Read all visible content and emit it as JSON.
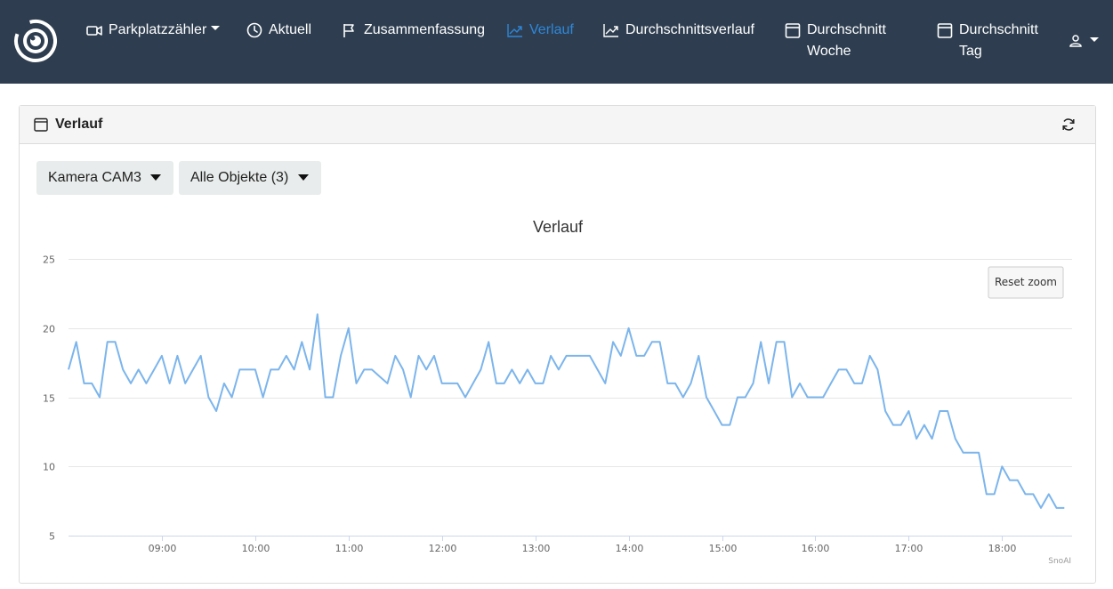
{
  "nav": {
    "brand_icon": "camera-eye-logo",
    "items": [
      {
        "label": "Parkplatzzähler",
        "icon": "video-camera-icon",
        "has_caret": true
      },
      {
        "label": "Aktuell",
        "icon": "clock-icon"
      },
      {
        "label": "Zusammenfassung",
        "icon": "flag-icon"
      },
      {
        "label": "Verlauf",
        "icon": "trending-up-icon",
        "active": true
      },
      {
        "label": "Durchschnittsverlauf",
        "icon": "trending-up-icon"
      },
      {
        "label": "Durchschnitt",
        "label2": "Woche",
        "icon": "calendar-icon"
      },
      {
        "label": "Durchschnitt",
        "label2": "Tag",
        "icon": "calendar-icon"
      }
    ],
    "user_icon": "user-icon"
  },
  "card": {
    "title": "Verlauf",
    "title_icon": "calendar-icon",
    "refresh_icon": "refresh-icon"
  },
  "filters": {
    "camera": "Kamera CAM3",
    "objects": "Alle Objekte (3)"
  },
  "chart_data": {
    "type": "line",
    "title": "Verlauf",
    "reset_zoom_label": "Reset zoom",
    "credit": "SnoAI",
    "xlabel": "",
    "ylabel": "",
    "x_tick_labels": [
      "09:00",
      "10:00",
      "11:00",
      "12:00",
      "13:00",
      "14:00",
      "15:00",
      "16:00",
      "17:00",
      "18:00"
    ],
    "y_tick_labels": [
      "5",
      "10",
      "15",
      "20",
      "25"
    ],
    "y_ticks": [
      5,
      10,
      15,
      20,
      25
    ],
    "ylim": [
      5,
      25
    ],
    "xlim_hours": [
      8.0,
      18.75
    ],
    "x_interval_minutes": 5,
    "x_start": "08:00",
    "series_color": "#7cb5ec",
    "grid": true,
    "legend": false,
    "series": [
      {
        "values": [
          17,
          19,
          16,
          16,
          15,
          19,
          19,
          17,
          16,
          17,
          16,
          17,
          18,
          16,
          18,
          16,
          17,
          18,
          15,
          14,
          16,
          15,
          17,
          17,
          17,
          15,
          17,
          17,
          18,
          17,
          19,
          17,
          21,
          15,
          15,
          18,
          20,
          16,
          17,
          17,
          16.5,
          16,
          18,
          17,
          15,
          18,
          17,
          18,
          16,
          16,
          16,
          15,
          16,
          17,
          19,
          16,
          16,
          17,
          16,
          17,
          16,
          16,
          18,
          17,
          18,
          18,
          18,
          18,
          17,
          16,
          19,
          18,
          20,
          18,
          18,
          19,
          19,
          16,
          16,
          15,
          16,
          18,
          15,
          14,
          13,
          13,
          15,
          15,
          16,
          19,
          16,
          19,
          19,
          15,
          16,
          15,
          15,
          15,
          16,
          17,
          17,
          16,
          16,
          18,
          17,
          14,
          13,
          13,
          14,
          12,
          13,
          12,
          14,
          14,
          12,
          11,
          11,
          11,
          8,
          8,
          10,
          9,
          9,
          8,
          8,
          7,
          8,
          7,
          7
        ]
      }
    ]
  }
}
